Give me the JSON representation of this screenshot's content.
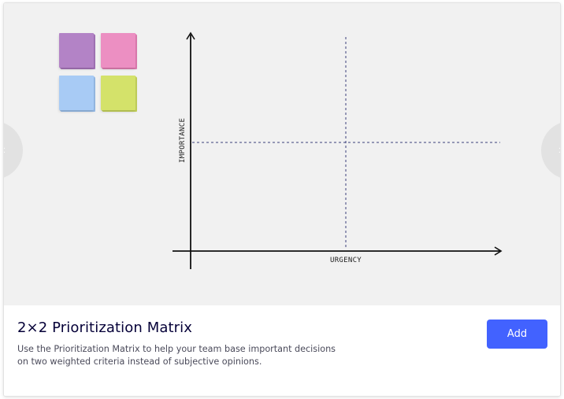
{
  "template": {
    "title": "2×2 Prioritization Matrix",
    "description": "Use the Prioritization Matrix to help your team base important decisions on two weighted criteria instead of subjective opinions.",
    "add_label": "Add"
  },
  "preview": {
    "y_axis_label": "IMPORTANCE",
    "x_axis_label": "URGENCY",
    "prev_icon": "chevron-left-icon",
    "next_icon": "chevron-right-icon"
  },
  "sticky_notes": [
    {
      "name": "sticky-note-purple",
      "color": "#b383c6",
      "back": "#a675ba"
    },
    {
      "name": "sticky-note-pink",
      "color": "#ec8fc2",
      "back": "#e07eb3"
    },
    {
      "name": "sticky-note-blue",
      "color": "#a8cbf5",
      "back": "#98bde9"
    },
    {
      "name": "sticky-note-green",
      "color": "#d4e26a",
      "back": "#c6d45d"
    }
  ],
  "colors": {
    "accent": "#4262ff",
    "title": "#050038",
    "preview_bg": "#f1f1f1",
    "divider_dash": "#3b3f7a"
  }
}
